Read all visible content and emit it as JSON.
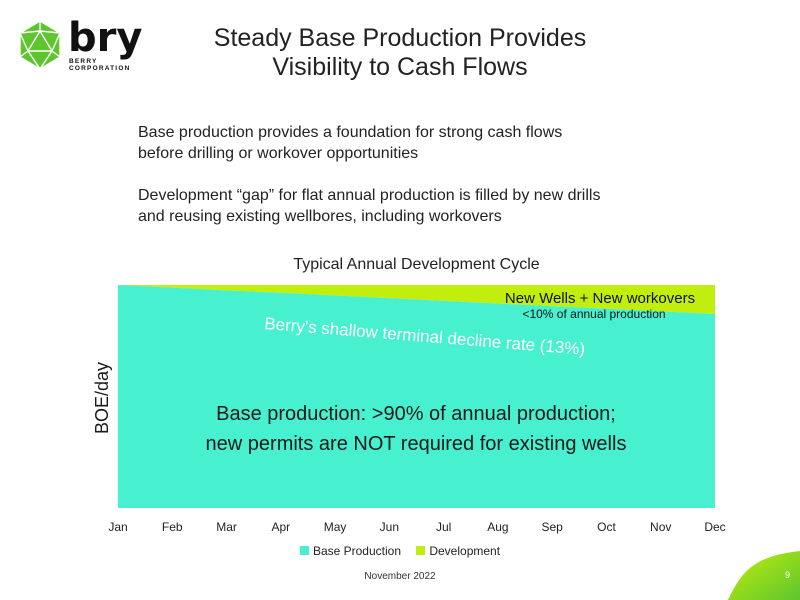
{
  "title": [
    "Steady Base Production Provides",
    "Visibility to Cash Flows"
  ],
  "logo": {
    "word": "bry",
    "sub": "BERRY CORPORATION"
  },
  "bullets": [
    [
      "Base production provides a foundation for strong cash flows",
      "before drilling or workover opportunities"
    ],
    [
      "Development “gap” for flat annual production is filled by new drills",
      "and reusing existing wellbores, including workovers"
    ]
  ],
  "footer": "November 2022",
  "page_number": "9",
  "colors": {
    "base": "#47F0CF",
    "development": "#C2EE0E",
    "accent": "#5EC52E"
  },
  "chart_data": {
    "type": "area",
    "stacked": true,
    "title": "Typical Annual Development Cycle",
    "xlabel": "",
    "ylabel": "BOE/day",
    "categories": [
      "Jan",
      "Feb",
      "Mar",
      "Apr",
      "May",
      "Jun",
      "Jul",
      "Aug",
      "Sep",
      "Oct",
      "Nov",
      "Dec"
    ],
    "ylim": [
      0,
      100
    ],
    "grid": false,
    "legend_position": "bottom",
    "series": [
      {
        "name": "Base Production",
        "values": [
          100,
          98.8,
          97.6,
          96.5,
          95.3,
          94.1,
          92.9,
          91.7,
          90.5,
          89.4,
          88.2,
          87.0
        ]
      },
      {
        "name": "Development",
        "values": [
          0,
          1.2,
          2.4,
          3.5,
          4.7,
          5.9,
          7.1,
          8.3,
          9.5,
          10.6,
          11.8,
          13.0
        ]
      }
    ],
    "annotations": {
      "development_main": "New Wells + New workovers",
      "development_sub": "<10% of annual production",
      "decline": "Berry's shallow terminal decline rate (13%)",
      "base_line1": "Base production: >90% of annual production;",
      "base_line2": "new permits are NOT required for existing wells"
    }
  }
}
